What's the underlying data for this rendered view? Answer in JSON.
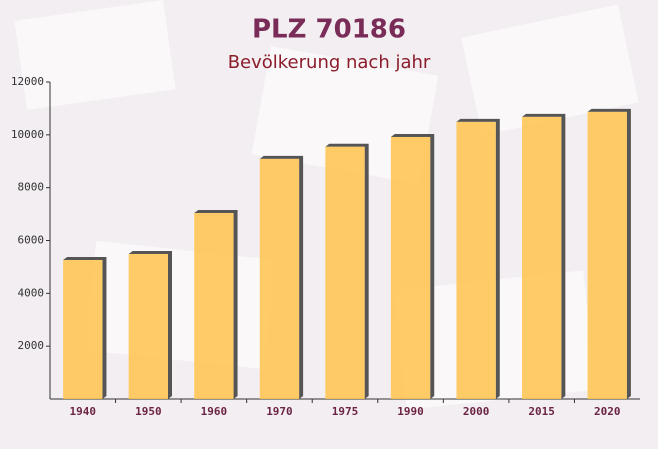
{
  "chart_data": {
    "type": "bar",
    "title": "PLZ 70186",
    "subtitle": "Bevölkerung nach jahr",
    "categories": [
      "1940",
      "1950",
      "1960",
      "1970",
      "1975",
      "1990",
      "2000",
      "2015",
      "2020"
    ],
    "values": [
      5260,
      5490,
      7040,
      9090,
      9550,
      9920,
      10490,
      10680,
      10870
    ],
    "color": "#ffc34d",
    "ylim": [
      0,
      12000
    ],
    "yticks": [
      2000,
      4000,
      6000,
      8000,
      10000,
      12000
    ],
    "grid": false
  }
}
